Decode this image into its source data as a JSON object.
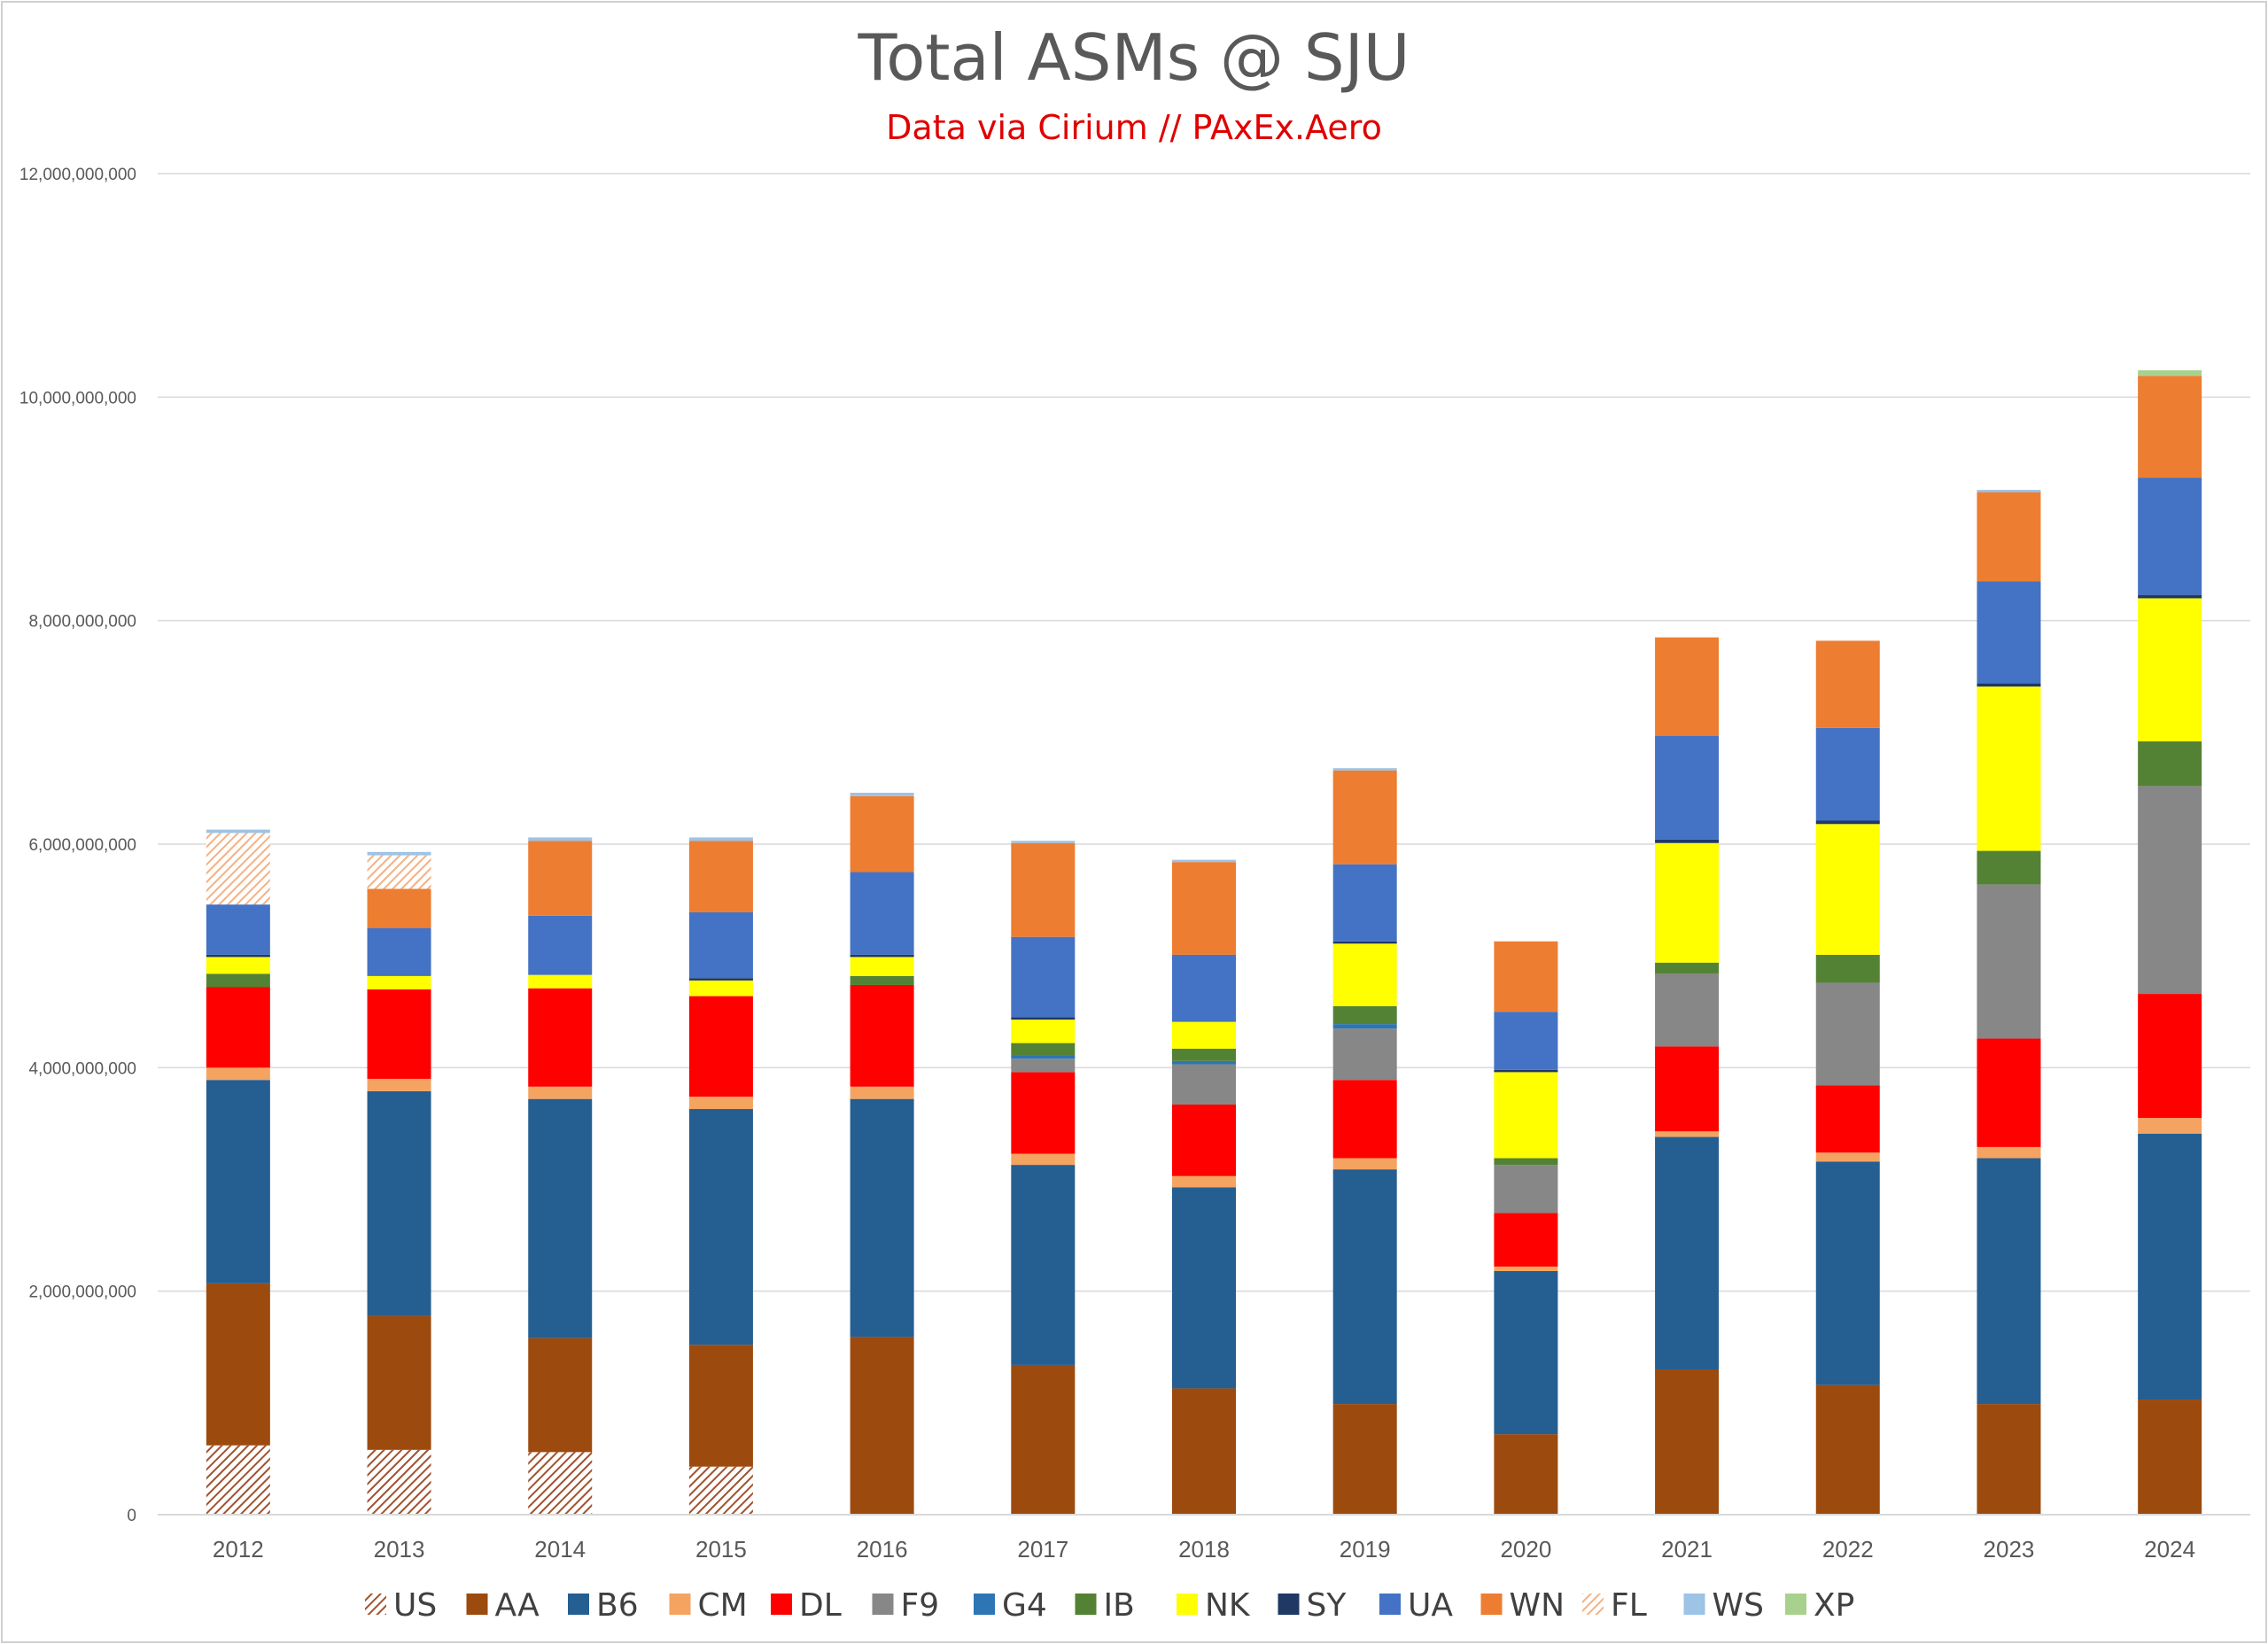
{
  "chart_data": {
    "type": "bar",
    "stacked": true,
    "title": "Total ASMs @ SJU",
    "subtitle": "Data via Cirium // PAxEx.Aero",
    "xlabel": "",
    "ylabel": "",
    "ylim": [
      0,
      12000000000
    ],
    "yticks": [
      0,
      2000000000,
      4000000000,
      6000000000,
      8000000000,
      10000000000,
      12000000000
    ],
    "ytick_labels": [
      "0",
      "2,000,000,000",
      "4,000,000,000",
      "6,000,000,000",
      "8,000,000,000",
      "10,000,000,000",
      "12,000,000,000"
    ],
    "grid": true,
    "legend_position": "bottom",
    "categories": [
      "2012",
      "2013",
      "2014",
      "2015",
      "2016",
      "2017",
      "2018",
      "2019",
      "2020",
      "2021",
      "2022",
      "2023",
      "2024"
    ],
    "series": [
      {
        "name": "US",
        "color": "#a0522d",
        "pattern": "hatch",
        "values": [
          620000000,
          580000000,
          560000000,
          430000000,
          0,
          0,
          0,
          0,
          0,
          0,
          0,
          0,
          0
        ]
      },
      {
        "name": "AA",
        "color": "#9c4a0e",
        "values": [
          1450000000,
          1200000000,
          1020000000,
          1090000000,
          1590000000,
          1340000000,
          1130000000,
          990000000,
          720000000,
          1300000000,
          1160000000,
          990000000,
          1030000000
        ]
      },
      {
        "name": "B6",
        "color": "#255e91",
        "values": [
          1820000000,
          2010000000,
          2140000000,
          2110000000,
          2130000000,
          1790000000,
          1800000000,
          2100000000,
          1460000000,
          2080000000,
          2000000000,
          2200000000,
          2380000000
        ]
      },
      {
        "name": "CM",
        "color": "#f4a460",
        "values": [
          110000000,
          110000000,
          110000000,
          110000000,
          110000000,
          100000000,
          100000000,
          100000000,
          40000000,
          50000000,
          80000000,
          100000000,
          140000000
        ]
      },
      {
        "name": "DL",
        "color": "#ff0000",
        "values": [
          720000000,
          800000000,
          880000000,
          900000000,
          910000000,
          730000000,
          640000000,
          700000000,
          480000000,
          760000000,
          600000000,
          970000000,
          1110000000
        ]
      },
      {
        "name": "F9",
        "color": "#878787",
        "values": [
          0,
          0,
          0,
          0,
          0,
          120000000,
          360000000,
          460000000,
          430000000,
          650000000,
          920000000,
          1380000000,
          1860000000
        ]
      },
      {
        "name": "G4",
        "color": "#2e75b6",
        "values": [
          0,
          0,
          0,
          0,
          0,
          30000000,
          30000000,
          40000000,
          0,
          0,
          0,
          0,
          0
        ]
      },
      {
        "name": "IB",
        "color": "#548235",
        "values": [
          120000000,
          0,
          0,
          0,
          80000000,
          110000000,
          110000000,
          160000000,
          60000000,
          100000000,
          250000000,
          300000000,
          400000000
        ]
      },
      {
        "name": "NK",
        "color": "#ffff00",
        "values": [
          150000000,
          120000000,
          120000000,
          140000000,
          170000000,
          210000000,
          240000000,
          560000000,
          770000000,
          1070000000,
          1170000000,
          1470000000,
          1280000000
        ]
      },
      {
        "name": "SY",
        "color": "#1f3864",
        "values": [
          20000000,
          0,
          0,
          20000000,
          20000000,
          20000000,
          0,
          20000000,
          20000000,
          30000000,
          30000000,
          30000000,
          30000000
        ]
      },
      {
        "name": "UA",
        "color": "#4472c4",
        "values": [
          450000000,
          430000000,
          530000000,
          590000000,
          740000000,
          720000000,
          600000000,
          690000000,
          520000000,
          930000000,
          830000000,
          910000000,
          1050000000
        ]
      },
      {
        "name": "WN",
        "color": "#ed7d31",
        "values": [
          0,
          350000000,
          670000000,
          640000000,
          680000000,
          840000000,
          830000000,
          840000000,
          630000000,
          880000000,
          780000000,
          800000000,
          910000000
        ]
      },
      {
        "name": "FL",
        "color": "#f4b183",
        "pattern": "hatch",
        "values": [
          640000000,
          300000000,
          0,
          0,
          0,
          0,
          0,
          0,
          0,
          0,
          0,
          0,
          0
        ]
      },
      {
        "name": "WS",
        "color": "#9dc3e6",
        "values": [
          30000000,
          30000000,
          30000000,
          30000000,
          30000000,
          20000000,
          20000000,
          20000000,
          0,
          0,
          0,
          20000000,
          0
        ]
      },
      {
        "name": "XP",
        "color": "#a9d18e",
        "values": [
          0,
          0,
          0,
          0,
          0,
          0,
          0,
          0,
          0,
          0,
          0,
          0,
          50000000
        ]
      }
    ]
  }
}
